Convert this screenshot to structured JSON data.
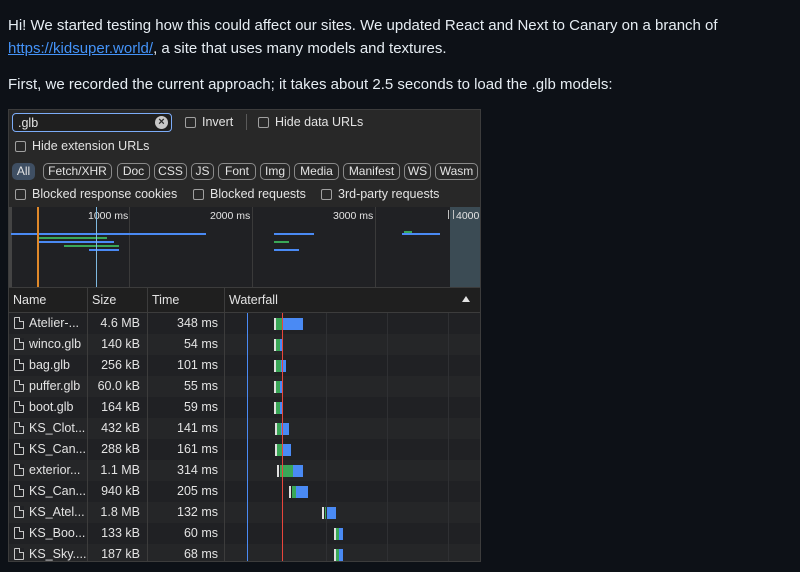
{
  "intro": {
    "line1": "Hi! We started testing how this could affect our sites. We updated React and Next to Canary on a branch of",
    "link": "https://kidsuper.world/",
    "line1_tail": ", a site that uses many models and textures.",
    "line2": "First, we recorded the current approach; it takes about 2.5 seconds to load the .glb models:"
  },
  "toolbar": {
    "filter_value": ".glb",
    "invert_label": "Invert",
    "hide_data_urls_label": "Hide data URLs",
    "hide_extension_urls_label": "Hide extension URLs",
    "blocked_cookies_label": "Blocked response cookies",
    "blocked_requests_label": "Blocked requests",
    "third_party_label": "3rd-party requests"
  },
  "type_filters": [
    "All",
    "Fetch/XHR",
    "Doc",
    "CSS",
    "JS",
    "Font",
    "Img",
    "Media",
    "Manifest",
    "WS",
    "Wasm"
  ],
  "overview": {
    "ticks": [
      "1000 ms",
      "2000 ms",
      "3000 ms",
      "4000"
    ]
  },
  "columns": {
    "name": "Name",
    "size": "Size",
    "time": "Time",
    "waterfall": "Waterfall"
  },
  "rows": [
    {
      "name": "Atelier-...",
      "size": "4.6 MB",
      "time": "348 ms"
    },
    {
      "name": "winco.glb",
      "size": "140 kB",
      "time": "54 ms"
    },
    {
      "name": "bag.glb",
      "size": "256 kB",
      "time": "101 ms"
    },
    {
      "name": "puffer.glb",
      "size": "60.0 kB",
      "time": "55 ms"
    },
    {
      "name": "boot.glb",
      "size": "164 kB",
      "time": "59 ms"
    },
    {
      "name": "KS_Clot...",
      "size": "432 kB",
      "time": "141 ms"
    },
    {
      "name": "KS_Can...",
      "size": "288 kB",
      "time": "161 ms"
    },
    {
      "name": "exterior...",
      "size": "1.1 MB",
      "time": "314 ms"
    },
    {
      "name": "KS_Can...",
      "size": "940 kB",
      "time": "205 ms"
    },
    {
      "name": "KS_Atel...",
      "size": "1.8 MB",
      "time": "132 ms"
    },
    {
      "name": "KS_Boo...",
      "size": "133 kB",
      "time": "60 ms"
    },
    {
      "name": "KS_Sky....",
      "size": "187 kB",
      "time": "68 ms"
    }
  ],
  "colors": {
    "background": "#0d1117",
    "link": "#4493f8",
    "waterfall_waiting": "#3aa757",
    "waterfall_download": "#4a8af4",
    "dom_content_loaded_line": "#4a8af4",
    "load_line": "#e8453c"
  }
}
